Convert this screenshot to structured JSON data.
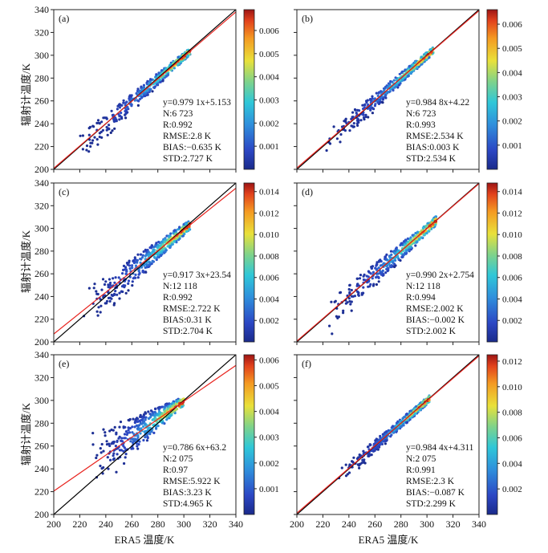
{
  "figure": {
    "ylabel": "辐射计温度/K",
    "xlabel": "ERA5 温度/K",
    "colors": {
      "identity_line": "#000000",
      "fit_line": "#e8231e"
    }
  },
  "chart_data": [
    {
      "type": "scatter",
      "panel": "(a)",
      "xlim": [
        200,
        340
      ],
      "ylim": [
        200,
        340
      ],
      "xticks": [],
      "yticks": [
        200,
        220,
        240,
        260,
        280,
        300,
        320,
        340
      ],
      "fit": {
        "slope": 0.9791,
        "intercept": 5.153
      },
      "stats": [
        "y=0.979 1x+5.153",
        "N:6 723",
        "R:0.992",
        "RMSE:2.8 K",
        "BIAS:−0.635 K",
        "STD:2.727 K"
      ],
      "colorbar": {
        "ticks": [
          "0.001",
          "0.002",
          "0.003",
          "0.004",
          "0.005",
          "0.006"
        ],
        "values": [
          0.001,
          0.002,
          0.003,
          0.004,
          0.005,
          0.006
        ],
        "max": 0.0069
      },
      "cloud": {
        "x_range": [
          220,
          305
        ],
        "y_at_low": 220,
        "spread_low": 10,
        "spread_high": 3,
        "offset": 0
      }
    },
    {
      "type": "scatter",
      "panel": "(b)",
      "xlim": [
        200,
        340
      ],
      "ylim": [
        200,
        340
      ],
      "xticks": [],
      "yticks": [],
      "fit": {
        "slope": 0.9848,
        "intercept": 4.22
      },
      "stats": [
        "y=0.984 8x+4.22",
        "N:6 723",
        "R:0.993",
        "RMSE:2.534 K",
        "BIAS:0.003 K",
        "STD:2.534 K"
      ],
      "colorbar": {
        "ticks": [
          "0.001",
          "0.002",
          "0.003",
          "0.004",
          "0.005",
          "0.006"
        ],
        "values": [
          0.001,
          0.002,
          0.003,
          0.004,
          0.005,
          0.006
        ],
        "max": 0.0066
      },
      "cloud": {
        "x_range": [
          222,
          305
        ],
        "spread_low": 9,
        "spread_high": 3,
        "offset": 0
      }
    },
    {
      "type": "scatter",
      "panel": "(c)",
      "xlim": [
        200,
        340
      ],
      "ylim": [
        200,
        340
      ],
      "xticks": [],
      "yticks": [
        200,
        220,
        240,
        260,
        280,
        300,
        320,
        340
      ],
      "fit": {
        "slope": 0.9173,
        "intercept": 23.54
      },
      "stats": [
        "y=0.917 3x+23.54",
        "N:12 118",
        "R:0.992",
        "RMSE:2.722 K",
        "BIAS:0.31 K",
        "STD:2.704 K"
      ],
      "colorbar": {
        "ticks": [
          "0.002",
          "0.004",
          "0.006",
          "0.008",
          "0.010",
          "0.012",
          "0.014"
        ],
        "values": [
          0.002,
          0.004,
          0.006,
          0.008,
          0.01,
          0.012,
          0.014
        ],
        "max": 0.0148
      },
      "cloud": {
        "x_range": [
          222,
          305
        ],
        "spread_low": 16,
        "spread_high": 4,
        "offset": 2
      }
    },
    {
      "type": "scatter",
      "panel": "(d)",
      "xlim": [
        200,
        340
      ],
      "ylim": [
        200,
        340
      ],
      "xticks": [],
      "yticks": [],
      "fit": {
        "slope": 0.9902,
        "intercept": 2.754
      },
      "stats": [
        "y=0.990 2x+2.754",
        "N:12 118",
        "R:0.994",
        "RMSE:2.002 K",
        "BIAS:−0.002 K",
        "STD:2.002 K"
      ],
      "colorbar": {
        "ticks": [
          "0.002",
          "0.004",
          "0.006",
          "0.008",
          "0.010",
          "0.012",
          "0.014"
        ],
        "values": [
          0.002,
          0.004,
          0.006,
          0.008,
          0.01,
          0.012,
          0.014
        ],
        "max": 0.0148
      },
      "cloud": {
        "x_range": [
          225,
          307
        ],
        "spread_low": 12,
        "spread_high": 4,
        "offset": 0
      }
    },
    {
      "type": "scatter",
      "panel": "(e)",
      "xlim": [
        200,
        340
      ],
      "ylim": [
        200,
        340
      ],
      "xticks": [
        200,
        220,
        240,
        260,
        280,
        300,
        320,
        340
      ],
      "yticks": [
        200,
        220,
        240,
        260,
        280,
        300,
        320,
        340
      ],
      "fit": {
        "slope": 0.7866,
        "intercept": 63.2
      },
      "stats": [
        "y=0.786 6x+63.2",
        "N:2 075",
        "R:0.97",
        "RMSE:5.922 K",
        "BIAS:3.23 K",
        "STD:4.965 K"
      ],
      "colorbar": {
        "ticks": [
          "0.001",
          "0.002",
          "0.003",
          "0.004",
          "0.005",
          "0.006"
        ],
        "values": [
          0.001,
          0.002,
          0.003,
          0.004,
          0.005,
          0.006
        ],
        "max": 0.0062
      },
      "cloud": {
        "x_range": [
          228,
          300
        ],
        "spread_low": 22,
        "spread_high": 4,
        "offset": 6
      }
    },
    {
      "type": "scatter",
      "panel": "(f)",
      "xlim": [
        200,
        340
      ],
      "ylim": [
        200,
        340
      ],
      "xticks": [
        200,
        220,
        240,
        260,
        280,
        300,
        320,
        340
      ],
      "yticks": [],
      "fit": {
        "slope": 0.9844,
        "intercept": 4.311
      },
      "stats": [
        "y=0.984 4x+4.311",
        "N:2 075",
        "R:0.991",
        "RMSE:2.3 K",
        "BIAS:−0.087 K",
        "STD:2.299 K"
      ],
      "colorbar": {
        "ticks": [
          "0.002",
          "0.004",
          "0.006",
          "0.008",
          "0.010",
          "0.012"
        ],
        "values": [
          0.002,
          0.004,
          0.006,
          0.008,
          0.01,
          0.012
        ],
        "max": 0.0125
      },
      "cloud": {
        "x_range": [
          232,
          302
        ],
        "spread_low": 6,
        "spread_high": 3,
        "offset": 0
      }
    }
  ]
}
